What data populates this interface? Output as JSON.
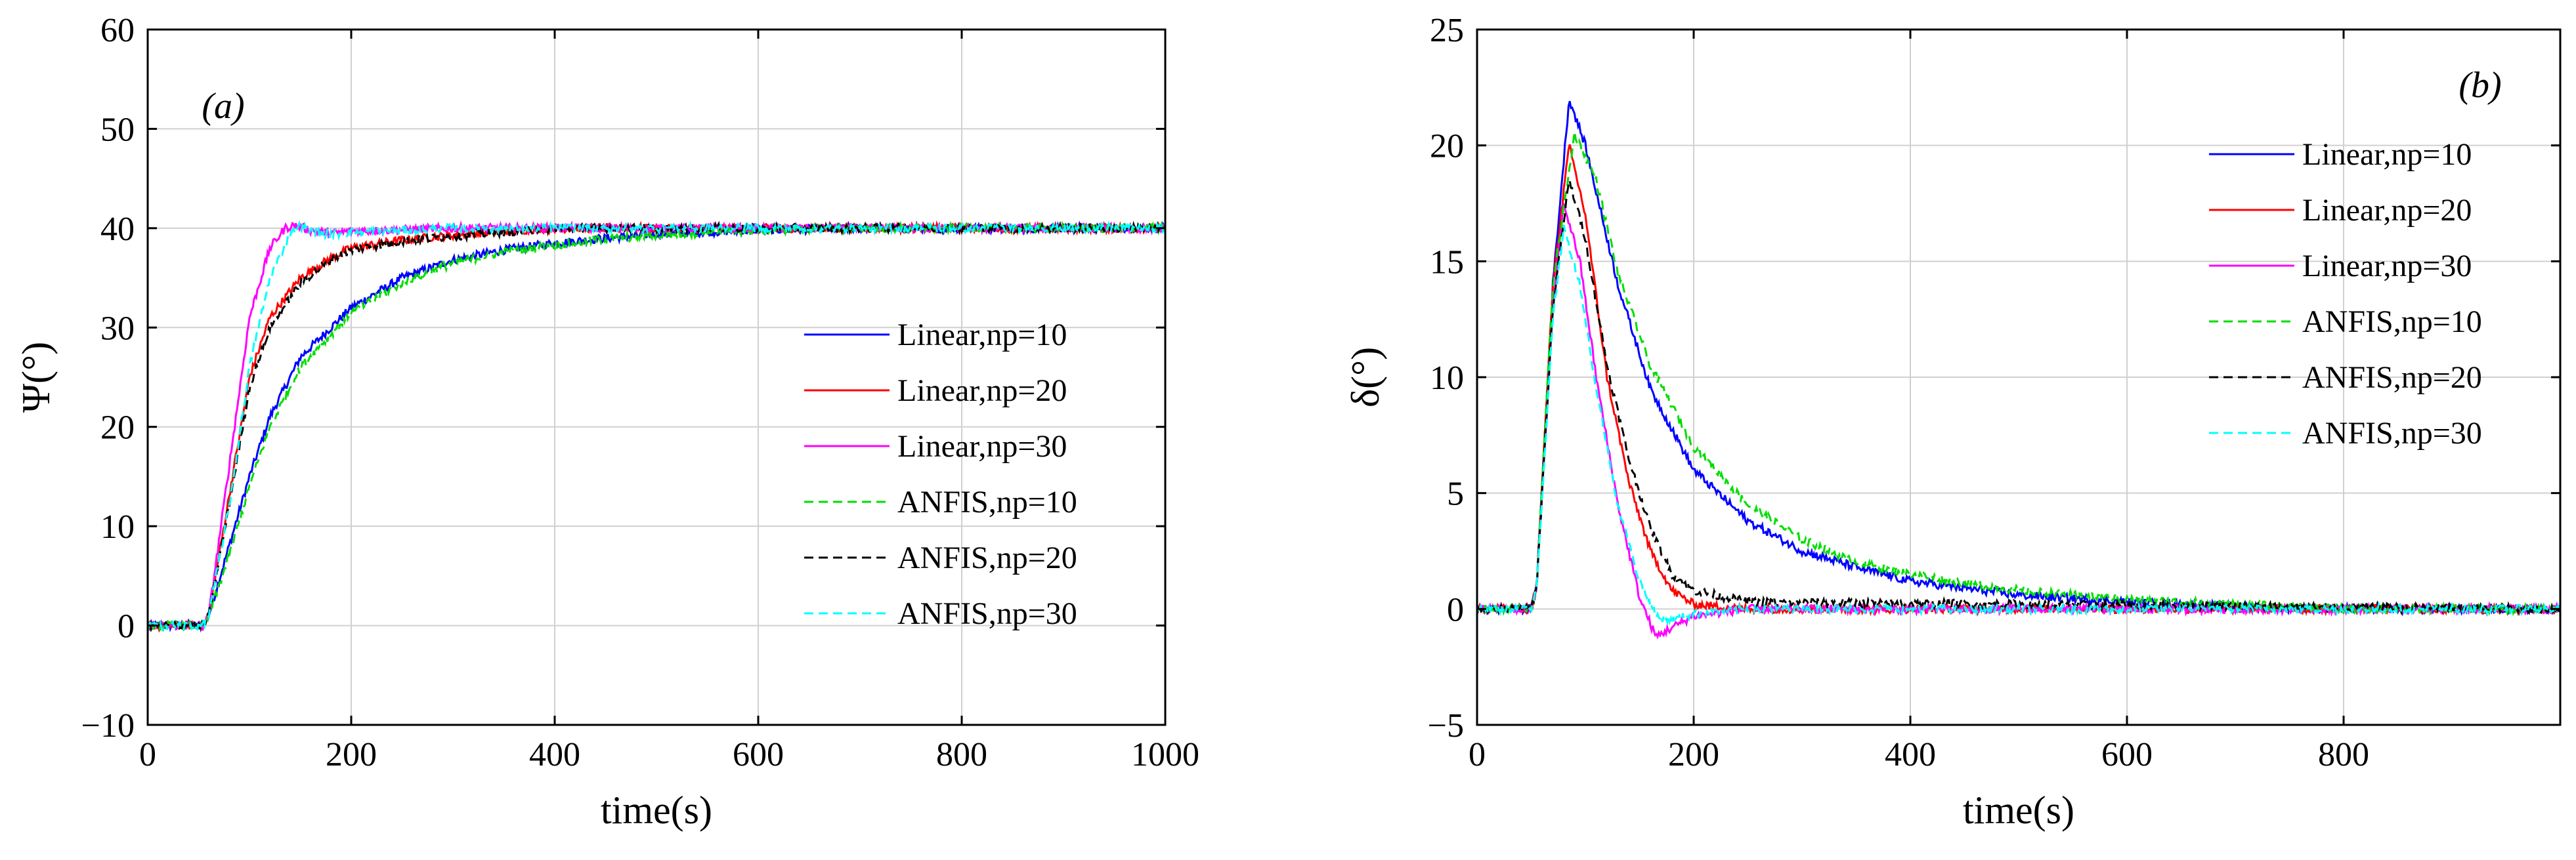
{
  "chart_data": [
    {
      "type": "line",
      "panel_label": "(a)",
      "xlabel": "time(s)",
      "ylabel": "Ψ(°)",
      "xlim": [
        0,
        1000
      ],
      "ylim": [
        -10,
        60
      ],
      "xticks": [
        0,
        200,
        400,
        600,
        800,
        1000
      ],
      "yticks": [
        -10,
        0,
        10,
        20,
        30,
        40,
        50,
        60
      ],
      "grid": true,
      "legend_position": "right-middle",
      "series": [
        {
          "name": "Linear,np=10",
          "color": "#0000ff",
          "dash": "solid",
          "x": [
            0,
            55,
            60,
            80,
            100,
            120,
            150,
            200,
            250,
            300,
            350,
            400,
            450,
            500,
            600,
            700,
            800,
            1000
          ],
          "y": [
            0,
            0,
            1,
            8,
            15,
            21,
            27,
            32,
            35,
            36.8,
            37.8,
            38.5,
            39,
            39.4,
            39.8,
            40,
            40,
            40
          ]
        },
        {
          "name": "Linear,np=20",
          "color": "#ff0000",
          "dash": "solid",
          "x": [
            0,
            55,
            60,
            80,
            100,
            120,
            150,
            180,
            200,
            250,
            300,
            350,
            400,
            450,
            500,
            1000
          ],
          "y": [
            0,
            0,
            1,
            13,
            25,
            31,
            35,
            37,
            38,
            38.8,
            39.3,
            39.7,
            40,
            40,
            40,
            40
          ]
        },
        {
          "name": "Linear,np=30",
          "color": "#ff00ff",
          "dash": "solid",
          "x": [
            0,
            55,
            60,
            80,
            100,
            120,
            135,
            145,
            160,
            180,
            200,
            300,
            1000
          ],
          "y": [
            0,
            0,
            1,
            16,
            31,
            38,
            40,
            40.3,
            39.8,
            39.5,
            39.7,
            40,
            40
          ]
        },
        {
          "name": "ANFIS,np=10",
          "color": "#00dd00",
          "dash": "dashed",
          "x": [
            0,
            55,
            60,
            80,
            100,
            120,
            150,
            200,
            250,
            300,
            350,
            400,
            450,
            500,
            600,
            700,
            800,
            1000
          ],
          "y": [
            0,
            0,
            1,
            7,
            14,
            20,
            26,
            31.5,
            34.5,
            36.5,
            37.6,
            38.3,
            38.9,
            39.3,
            39.8,
            40,
            40,
            40
          ]
        },
        {
          "name": "ANFIS,np=20",
          "color": "#000000",
          "dash": "dashed",
          "x": [
            0,
            55,
            60,
            80,
            100,
            120,
            150,
            180,
            200,
            250,
            300,
            350,
            400,
            450,
            500,
            1000
          ],
          "y": [
            0,
            0,
            1,
            12,
            24,
            30,
            34.5,
            36.8,
            37.8,
            38.7,
            39.2,
            39.6,
            40,
            40,
            40,
            40
          ]
        },
        {
          "name": "ANFIS,np=30",
          "color": "#00ffff",
          "dash": "dashed",
          "x": [
            0,
            55,
            60,
            80,
            100,
            120,
            140,
            150,
            160,
            180,
            200,
            300,
            1000
          ],
          "y": [
            0,
            0,
            1,
            12,
            26,
            35,
            39.5,
            40.2,
            39.7,
            39.4,
            39.6,
            40,
            40
          ]
        }
      ]
    },
    {
      "type": "line",
      "panel_label": "(b)",
      "xlabel": "time(s)",
      "ylabel": "δ(°)",
      "xlim": [
        0,
        1000
      ],
      "ylim": [
        -5,
        25
      ],
      "xticks": [
        0,
        200,
        400,
        600,
        800
      ],
      "yticks": [
        -5,
        0,
        5,
        10,
        15,
        20,
        25
      ],
      "grid": true,
      "legend_position": "top-right",
      "series": [
        {
          "name": "Linear,np=10",
          "color": "#0000ff",
          "dash": "solid",
          "x": [
            0,
            50,
            55,
            70,
            85,
            100,
            130,
            160,
            200,
            250,
            300,
            350,
            400,
            500,
            600,
            700,
            800,
            1000
          ],
          "y": [
            0,
            0,
            1,
            14,
            22,
            20,
            14,
            9.5,
            6,
            3.8,
            2.5,
            1.8,
            1.2,
            0.6,
            0.3,
            0.1,
            0,
            0
          ]
        },
        {
          "name": "Linear,np=20",
          "color": "#ff0000",
          "dash": "solid",
          "x": [
            0,
            50,
            55,
            70,
            85,
            100,
            120,
            140,
            160,
            180,
            200,
            250,
            1000
          ],
          "y": [
            0,
            0,
            1,
            14,
            20,
            17,
            10,
            5.5,
            2.5,
            0.8,
            0.2,
            0,
            0
          ]
        },
        {
          "name": "Linear,np=30",
          "color": "#ff00ff",
          "dash": "solid",
          "x": [
            0,
            50,
            55,
            70,
            80,
            95,
            110,
            130,
            150,
            165,
            180,
            200,
            250,
            1000
          ],
          "y": [
            0,
            0,
            1,
            13,
            17.5,
            15,
            10,
            4.5,
            0.5,
            -1.2,
            -0.8,
            -0.3,
            0,
            0
          ]
        },
        {
          "name": "ANFIS,np=10",
          "color": "#00dd00",
          "dash": "dashed",
          "x": [
            0,
            50,
            55,
            70,
            90,
            110,
            130,
            160,
            200,
            250,
            300,
            350,
            400,
            500,
            600,
            700,
            800,
            1000
          ],
          "y": [
            0,
            0,
            1,
            14,
            20.5,
            18.5,
            14.5,
            10.5,
            7,
            4.5,
            3,
            2,
            1.5,
            0.8,
            0.4,
            0.2,
            0,
            0
          ]
        },
        {
          "name": "ANFIS,np=20",
          "color": "#000000",
          "dash": "dashed",
          "x": [
            0,
            50,
            55,
            70,
            85,
            100,
            120,
            140,
            160,
            180,
            200,
            250,
            1000
          ],
          "y": [
            0,
            0,
            1,
            13,
            18.5,
            16,
            10.5,
            6.5,
            3.5,
            1.5,
            0.8,
            0.3,
            0
          ]
        },
        {
          "name": "ANFIS,np=30",
          "color": "#00ffff",
          "dash": "dashed",
          "x": [
            0,
            50,
            55,
            70,
            80,
            95,
            110,
            130,
            150,
            165,
            180,
            200,
            250,
            1000
          ],
          "y": [
            0,
            0,
            1,
            12.5,
            16.5,
            14,
            9.5,
            4.5,
            1.2,
            -0.3,
            -0.5,
            -0.2,
            0,
            0
          ]
        }
      ]
    }
  ]
}
